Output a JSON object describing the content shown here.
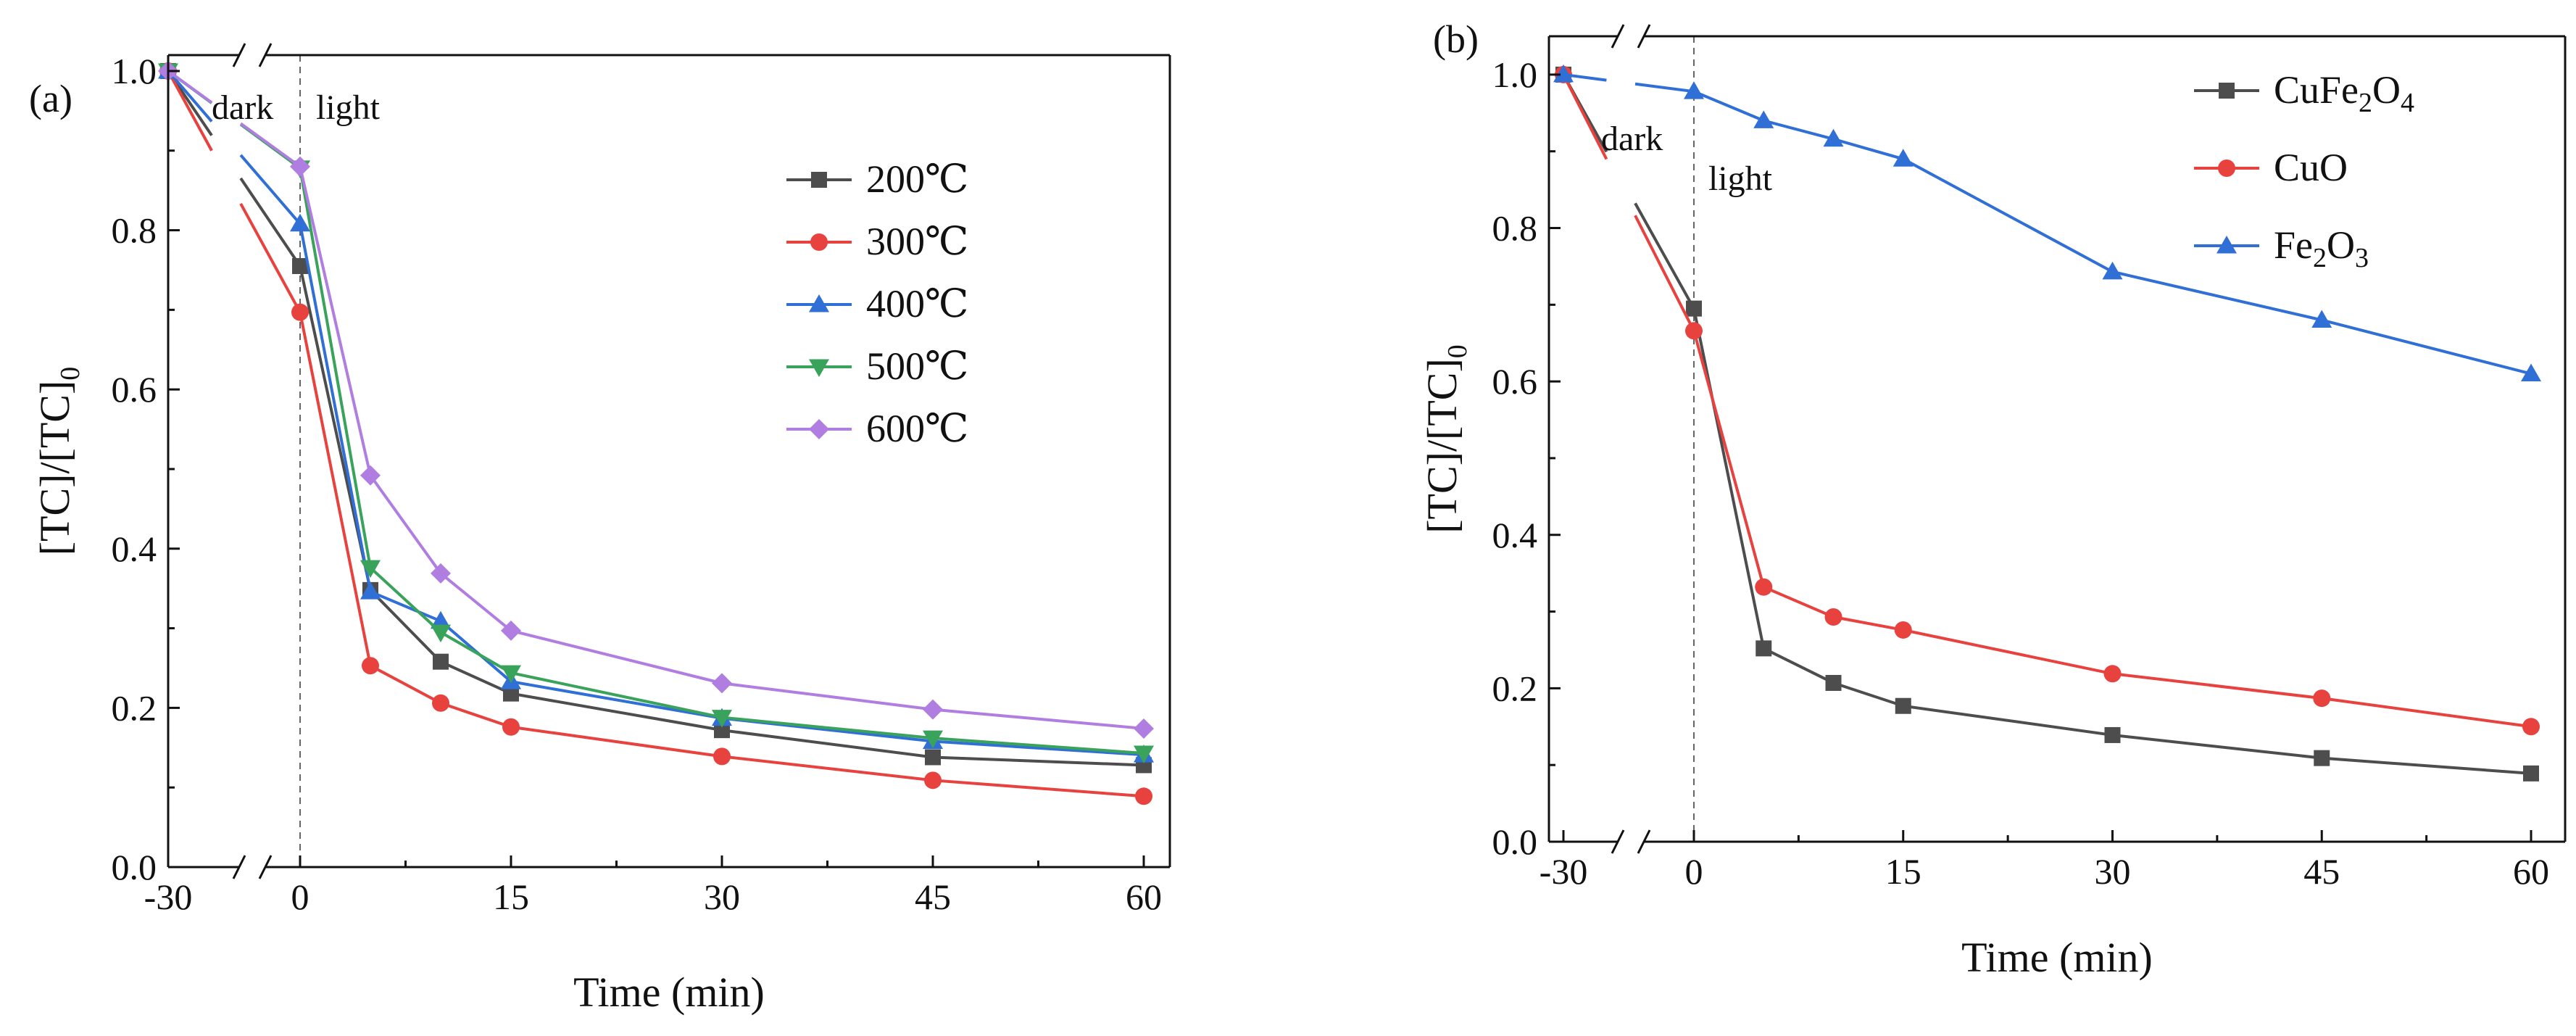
{
  "chart_data": [
    {
      "panel_label": "(a)",
      "type": "line",
      "xlabel": "Time (min)",
      "ylabel_main": "[TC]/[TC]",
      "ylabel_sub": "0",
      "x_tick_labels": [
        "-30",
        "0",
        "15",
        "30",
        "45",
        "60"
      ],
      "y_tick_labels": [
        "0.0",
        "0.2",
        "0.4",
        "0.6",
        "0.8",
        "1.0"
      ],
      "ylim": [
        0,
        1.02
      ],
      "axis_break": "between -30 and 0",
      "annotations": {
        "dark": "dark",
        "light": "light"
      },
      "legend_position": "upper-right",
      "x": [
        -30,
        0,
        5,
        10,
        15,
        30,
        45,
        60
      ],
      "series": [
        {
          "name": "200℃",
          "label": "200℃",
          "color": "#4d4d4d",
          "marker": "square",
          "values": [
            1.0,
            0.755,
            0.348,
            0.258,
            0.218,
            0.172,
            0.138,
            0.128
          ]
        },
        {
          "name": "300℃",
          "label": "300℃",
          "color": "#e8423f",
          "marker": "circle",
          "values": [
            1.0,
            0.697,
            0.253,
            0.206,
            0.176,
            0.139,
            0.109,
            0.089
          ]
        },
        {
          "name": "400℃",
          "label": "400℃",
          "color": "#2f6fd6",
          "marker": "triangle-up",
          "values": [
            1.0,
            0.808,
            0.346,
            0.309,
            0.233,
            0.187,
            0.158,
            0.141
          ]
        },
        {
          "name": "500℃",
          "label": "500℃",
          "color": "#3aa35b",
          "marker": "triangle-down",
          "values": [
            1.0,
            0.878,
            0.376,
            0.295,
            0.244,
            0.188,
            0.162,
            0.143
          ]
        },
        {
          "name": "600℃",
          "label": "600℃",
          "color": "#b07de0",
          "marker": "diamond",
          "values": [
            1.0,
            0.88,
            0.492,
            0.369,
            0.297,
            0.231,
            0.198,
            0.174
          ]
        }
      ]
    },
    {
      "panel_label": "(b)",
      "type": "line",
      "xlabel": "Time (min)",
      "ylabel_main": "[TC]/[TC]",
      "ylabel_sub": "0",
      "x_tick_labels": [
        "-30",
        "0",
        "15",
        "30",
        "45",
        "60"
      ],
      "y_tick_labels": [
        "0.0",
        "0.2",
        "0.4",
        "0.6",
        "0.8",
        "1.0"
      ],
      "ylim": [
        0,
        1.05
      ],
      "axis_break": "between -30 and 0",
      "annotations": {
        "dark": "dark",
        "light": "light"
      },
      "legend_position": "upper-right",
      "x": [
        -30,
        0,
        5,
        10,
        15,
        30,
        45,
        60
      ],
      "series": [
        {
          "name": "CuFe2O4",
          "label_parts": [
            [
              "CuFe",
              false
            ],
            [
              "2",
              true
            ],
            [
              "O",
              false
            ],
            [
              "4",
              true
            ]
          ],
          "color": "#4d4d4d",
          "marker": "square",
          "values": [
            1.0,
            0.695,
            0.252,
            0.207,
            0.177,
            0.139,
            0.109,
            0.089
          ]
        },
        {
          "name": "CuO",
          "label_parts": [
            [
              "CuO",
              false
            ]
          ],
          "color": "#e8423f",
          "marker": "circle",
          "values": [
            1.0,
            0.666,
            0.332,
            0.293,
            0.276,
            0.219,
            0.187,
            0.15
          ]
        },
        {
          "name": "Fe2O3",
          "label_parts": [
            [
              "Fe",
              false
            ],
            [
              "2",
              true
            ],
            [
              "O",
              false
            ],
            [
              "3",
              true
            ]
          ],
          "color": "#2f6fd6",
          "marker": "triangle-up",
          "values": [
            1.0,
            0.978,
            0.94,
            0.916,
            0.89,
            0.743,
            0.68,
            0.61
          ]
        }
      ]
    }
  ]
}
